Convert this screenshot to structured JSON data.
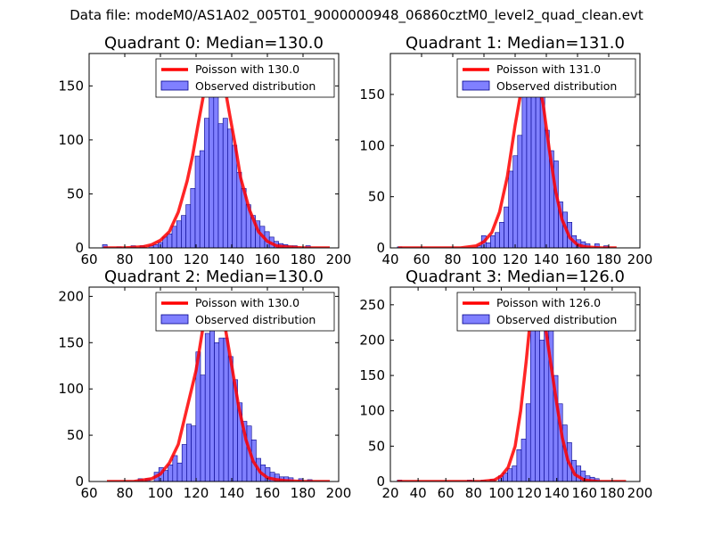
{
  "suptitle": "Data file: modeM0/AS1A02_005T01_9000000948_06860cztM0_level2_quad_clean.evt",
  "colors": {
    "bar": "#8080ff",
    "bar_edge": "#00008b",
    "line": "#ff0000"
  },
  "chart_data": [
    {
      "type": "bar",
      "title": "Quadrant 0: Median=130.0",
      "xlabel": "",
      "ylabel": "",
      "xlim": [
        60,
        200
      ],
      "ylim": [
        0,
        180
      ],
      "xticks": [
        60,
        80,
        100,
        120,
        140,
        160,
        180,
        200
      ],
      "yticks": [
        0,
        50,
        100,
        150
      ],
      "legend": {
        "placement": "top-right",
        "line_label": "Poisson with 130.0",
        "bar_label": "Observed distribution"
      },
      "series": [
        {
          "name": "Observed distribution",
          "kind": "histogram",
          "bin_width": 2.6,
          "bins": [
            [
              67.5,
              3
            ],
            [
              75.5,
              1
            ],
            [
              83.5,
              2
            ],
            [
              88.5,
              2
            ],
            [
              93.5,
              2
            ],
            [
              96.1,
              3
            ],
            [
              98.7,
              5
            ],
            [
              101.3,
              10
            ],
            [
              103.9,
              13
            ],
            [
              106.5,
              20
            ],
            [
              109.1,
              25
            ],
            [
              111.7,
              30
            ],
            [
              114.3,
              40
            ],
            [
              116.9,
              55
            ],
            [
              119.5,
              85
            ],
            [
              122.1,
              90
            ],
            [
              124.7,
              120
            ],
            [
              127.3,
              150
            ],
            [
              129.9,
              170
            ],
            [
              132.5,
              115
            ],
            [
              135.1,
              120
            ],
            [
              137.7,
              110
            ],
            [
              140.3,
              95
            ],
            [
              142.9,
              70
            ],
            [
              145.5,
              55
            ],
            [
              148.1,
              40
            ],
            [
              150.7,
              30
            ],
            [
              153.3,
              25
            ],
            [
              155.9,
              20
            ],
            [
              158.5,
              15
            ],
            [
              161.1,
              10
            ],
            [
              163.7,
              6
            ],
            [
              166.3,
              4
            ],
            [
              168.9,
              3
            ],
            [
              171.5,
              2
            ],
            [
              174.1,
              2
            ],
            [
              181.5,
              2
            ]
          ]
        },
        {
          "name": "Poisson with 130.0",
          "kind": "line",
          "x": [
            68,
            80,
            90,
            95,
            100,
            105,
            110,
            115,
            118,
            121,
            124,
            127,
            130,
            133,
            136,
            139,
            142,
            145,
            150,
            155,
            160,
            165,
            170,
            180,
            195
          ],
          "y": [
            0,
            0,
            1,
            3,
            7,
            15,
            33,
            62,
            85,
            113,
            140,
            163,
            173,
            168,
            150,
            122,
            95,
            65,
            35,
            15,
            6,
            2,
            1,
            0,
            0
          ]
        }
      ]
    },
    {
      "type": "bar",
      "title": "Quadrant 1: Median=131.0",
      "xlabel": "",
      "ylabel": "",
      "xlim": [
        40,
        200
      ],
      "ylim": [
        0,
        190
      ],
      "xticks": [
        40,
        60,
        80,
        100,
        120,
        140,
        160,
        180,
        200
      ],
      "yticks": [
        0,
        50,
        100,
        150
      ],
      "legend": {
        "placement": "top-right",
        "line_label": "Poisson with 131.0",
        "bar_label": "Observed distribution"
      },
      "series": [
        {
          "name": "Observed distribution",
          "kind": "histogram",
          "bin_width": 2.9,
          "bins": [
            [
              44.5,
              1
            ],
            [
              95.5,
              2
            ],
            [
              98.4,
              12
            ],
            [
              101.3,
              5
            ],
            [
              104.2,
              12
            ],
            [
              107.1,
              15
            ],
            [
              110,
              25
            ],
            [
              112.9,
              40
            ],
            [
              115.8,
              75
            ],
            [
              118.7,
              90
            ],
            [
              121.6,
              110
            ],
            [
              124.5,
              150
            ],
            [
              127.4,
              160
            ],
            [
              130.3,
              175
            ],
            [
              133.2,
              175
            ],
            [
              136.1,
              155
            ],
            [
              139,
              115
            ],
            [
              141.9,
              95
            ],
            [
              144.8,
              85
            ],
            [
              147.7,
              45
            ],
            [
              150.6,
              35
            ],
            [
              153.5,
              25
            ],
            [
              156.4,
              12
            ],
            [
              159.3,
              8
            ],
            [
              162.2,
              6
            ],
            [
              165.1,
              4
            ],
            [
              171,
              4
            ],
            [
              176.8,
              2
            ]
          ]
        },
        {
          "name": "Poisson with 131.0",
          "kind": "line",
          "x": [
            45,
            85,
            95,
            100,
            105,
            110,
            115,
            120,
            124,
            128,
            131,
            134,
            138,
            142,
            146,
            150,
            155,
            160,
            165,
            175,
            185
          ],
          "y": [
            0,
            0,
            2,
            6,
            15,
            35,
            70,
            120,
            155,
            178,
            180,
            172,
            140,
            95,
            55,
            28,
            10,
            3,
            1,
            0,
            0
          ]
        }
      ]
    },
    {
      "type": "bar",
      "title": "Quadrant 2: Median=130.0",
      "xlabel": "",
      "ylabel": "",
      "xlim": [
        60,
        200
      ],
      "ylim": [
        0,
        210
      ],
      "xticks": [
        60,
        80,
        100,
        120,
        140,
        160,
        180,
        200
      ],
      "yticks": [
        0,
        50,
        100,
        150,
        200
      ],
      "legend": {
        "placement": "top-right",
        "line_label": "Poisson with 130.0",
        "bar_label": "Observed distribution"
      },
      "series": [
        {
          "name": "Observed distribution",
          "kind": "histogram",
          "bin_width": 2.6,
          "bins": [
            [
              87.5,
              3
            ],
            [
              91.5,
              3
            ],
            [
              96.5,
              10
            ],
            [
              99.1,
              15
            ],
            [
              101.7,
              12
            ],
            [
              104.3,
              18
            ],
            [
              106.9,
              28
            ],
            [
              109.5,
              20
            ],
            [
              112.1,
              40
            ],
            [
              114.7,
              62
            ],
            [
              117.3,
              60
            ],
            [
              119.9,
              140
            ],
            [
              122.5,
              115
            ],
            [
              125.1,
              160
            ],
            [
              127.7,
              185
            ],
            [
              130.3,
              150
            ],
            [
              132.9,
              155
            ],
            [
              135.5,
              155
            ],
            [
              138.1,
              135
            ],
            [
              140.7,
              110
            ],
            [
              143.3,
              85
            ],
            [
              145.9,
              65
            ],
            [
              148.5,
              60
            ],
            [
              151.1,
              45
            ],
            [
              153.7,
              25
            ],
            [
              156.3,
              18
            ],
            [
              158.9,
              15
            ],
            [
              161.5,
              10
            ],
            [
              164.1,
              8
            ],
            [
              166.7,
              5
            ],
            [
              169.3,
              5
            ],
            [
              171.9,
              4
            ],
            [
              177.5,
              3
            ],
            [
              182.5,
              2
            ]
          ]
        },
        {
          "name": "Poisson with 130.0",
          "kind": "line",
          "x": [
            70,
            85,
            95,
            100,
            105,
            110,
            115,
            120,
            124,
            127,
            130,
            133,
            136,
            140,
            144,
            148,
            152,
            156,
            160,
            165,
            170,
            180,
            195
          ],
          "y": [
            0,
            0,
            3,
            8,
            20,
            40,
            80,
            120,
            168,
            195,
            200,
            192,
            170,
            125,
            80,
            45,
            22,
            10,
            4,
            2,
            1,
            0,
            0
          ]
        }
      ]
    },
    {
      "type": "bar",
      "title": "Quadrant 3: Median=126.0",
      "xlabel": "",
      "ylabel": "",
      "xlim": [
        20,
        200
      ],
      "ylim": [
        0,
        275
      ],
      "xticks": [
        20,
        40,
        60,
        80,
        100,
        120,
        140,
        160,
        180,
        200
      ],
      "yticks": [
        0,
        50,
        100,
        150,
        200,
        250
      ],
      "legend": {
        "placement": "top-right",
        "line_label": "Poisson with 126.0",
        "bar_label": "Observed distribution"
      },
      "series": [
        {
          "name": "Observed distribution",
          "kind": "histogram",
          "bin_width": 3.3,
          "bins": [
            [
              25,
              2
            ],
            [
              75.5,
              2
            ],
            [
              85.5,
              2
            ],
            [
              92,
              3
            ],
            [
              98,
              8
            ],
            [
              101.3,
              12
            ],
            [
              104.6,
              18
            ],
            [
              107.9,
              22
            ],
            [
              111.2,
              45
            ],
            [
              114.5,
              60
            ],
            [
              117.8,
              110
            ],
            [
              121.1,
              225
            ],
            [
              124.4,
              255
            ],
            [
              127.7,
              200
            ],
            [
              131,
              260
            ],
            [
              134.3,
              240
            ],
            [
              137.6,
              150
            ],
            [
              140.9,
              110
            ],
            [
              144.2,
              80
            ],
            [
              147.5,
              55
            ],
            [
              150.8,
              30
            ],
            [
              154.1,
              22
            ],
            [
              157.4,
              15
            ],
            [
              160.7,
              8
            ],
            [
              164,
              6
            ],
            [
              167.3,
              4
            ]
          ]
        },
        {
          "name": "Poisson with 126.0",
          "kind": "line",
          "x": [
            25,
            85,
            95,
            100,
            105,
            110,
            114,
            118,
            121,
            124,
            126,
            128,
            131,
            134,
            137,
            140,
            144,
            148,
            153,
            160,
            170,
            190
          ],
          "y": [
            0,
            0,
            2,
            8,
            20,
            50,
            100,
            170,
            230,
            255,
            262,
            255,
            230,
            190,
            150,
            110,
            62,
            30,
            10,
            2,
            0,
            0
          ]
        }
      ]
    }
  ]
}
